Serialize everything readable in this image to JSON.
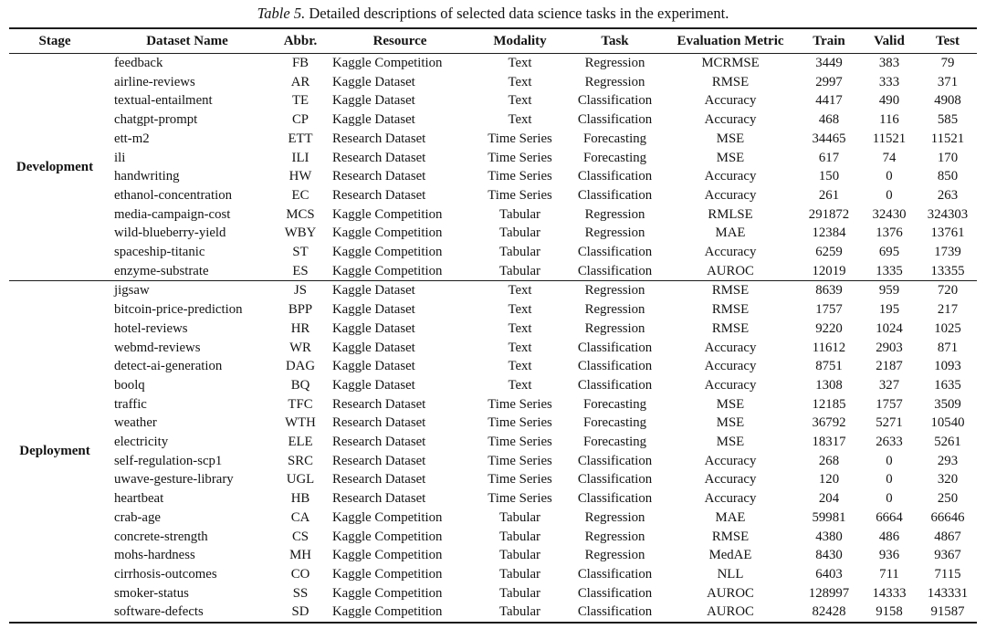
{
  "caption": {
    "label": "Table 5.",
    "text": "Detailed descriptions of selected data science tasks in the experiment."
  },
  "table": {
    "columns": [
      "Stage",
      "Dataset Name",
      "Abbr.",
      "Resource",
      "Modality",
      "Task",
      "Evaluation Metric",
      "Train",
      "Valid",
      "Test"
    ],
    "sections": [
      {
        "stage": "Development",
        "rows": [
          [
            "feedback",
            "FB",
            "Kaggle Competition",
            "Text",
            "Regression",
            "MCRMSE",
            "3449",
            "383",
            "79"
          ],
          [
            "airline-reviews",
            "AR",
            "Kaggle Dataset",
            "Text",
            "Regression",
            "RMSE",
            "2997",
            "333",
            "371"
          ],
          [
            "textual-entailment",
            "TE",
            "Kaggle Dataset",
            "Text",
            "Classification",
            "Accuracy",
            "4417",
            "490",
            "4908"
          ],
          [
            "chatgpt-prompt",
            "CP",
            "Kaggle Dataset",
            "Text",
            "Classification",
            "Accuracy",
            "468",
            "116",
            "585"
          ],
          [
            "ett-m2",
            "ETT",
            "Research Dataset",
            "Time Series",
            "Forecasting",
            "MSE",
            "34465",
            "11521",
            "11521"
          ],
          [
            "ili",
            "ILI",
            "Research Dataset",
            "Time Series",
            "Forecasting",
            "MSE",
            "617",
            "74",
            "170"
          ],
          [
            "handwriting",
            "HW",
            "Research Dataset",
            "Time Series",
            "Classification",
            "Accuracy",
            "150",
            "0",
            "850"
          ],
          [
            "ethanol-concentration",
            "EC",
            "Research Dataset",
            "Time Series",
            "Classification",
            "Accuracy",
            "261",
            "0",
            "263"
          ],
          [
            "media-campaign-cost",
            "MCS",
            "Kaggle Competition",
            "Tabular",
            "Regression",
            "RMLSE",
            "291872",
            "32430",
            "324303"
          ],
          [
            "wild-blueberry-yield",
            "WBY",
            "Kaggle Competition",
            "Tabular",
            "Regression",
            "MAE",
            "12384",
            "1376",
            "13761"
          ],
          [
            "spaceship-titanic",
            "ST",
            "Kaggle Competition",
            "Tabular",
            "Classification",
            "Accuracy",
            "6259",
            "695",
            "1739"
          ],
          [
            "enzyme-substrate",
            "ES",
            "Kaggle Competition",
            "Tabular",
            "Classification",
            "AUROC",
            "12019",
            "1335",
            "13355"
          ]
        ]
      },
      {
        "stage": "Deployment",
        "rows": [
          [
            "jigsaw",
            "JS",
            "Kaggle Dataset",
            "Text",
            "Regression",
            "RMSE",
            "8639",
            "959",
            "720"
          ],
          [
            "bitcoin-price-prediction",
            "BPP",
            "Kaggle Dataset",
            "Text",
            "Regression",
            "RMSE",
            "1757",
            "195",
            "217"
          ],
          [
            "hotel-reviews",
            "HR",
            "Kaggle Dataset",
            "Text",
            "Regression",
            "RMSE",
            "9220",
            "1024",
            "1025"
          ],
          [
            "webmd-reviews",
            "WR",
            "Kaggle Dataset",
            "Text",
            "Classification",
            "Accuracy",
            "11612",
            "2903",
            "871"
          ],
          [
            "detect-ai-generation",
            "DAG",
            "Kaggle Dataset",
            "Text",
            "Classification",
            "Accuracy",
            "8751",
            "2187",
            "1093"
          ],
          [
            "boolq",
            "BQ",
            "Kaggle Dataset",
            "Text",
            "Classification",
            "Accuracy",
            "1308",
            "327",
            "1635"
          ],
          [
            "traffic",
            "TFC",
            "Research Dataset",
            "Time Series",
            "Forecasting",
            "MSE",
            "12185",
            "1757",
            "3509"
          ],
          [
            "weather",
            "WTH",
            "Research Dataset",
            "Time Series",
            "Forecasting",
            "MSE",
            "36792",
            "5271",
            "10540"
          ],
          [
            "electricity",
            "ELE",
            "Research Dataset",
            "Time Series",
            "Forecasting",
            "MSE",
            "18317",
            "2633",
            "5261"
          ],
          [
            "self-regulation-scp1",
            "SRC",
            "Research Dataset",
            "Time Series",
            "Classification",
            "Accuracy",
            "268",
            "0",
            "293"
          ],
          [
            "uwave-gesture-library",
            "UGL",
            "Research Dataset",
            "Time Series",
            "Classification",
            "Accuracy",
            "120",
            "0",
            "320"
          ],
          [
            "heartbeat",
            "HB",
            "Research Dataset",
            "Time Series",
            "Classification",
            "Accuracy",
            "204",
            "0",
            "250"
          ],
          [
            "crab-age",
            "CA",
            "Kaggle Competition",
            "Tabular",
            "Regression",
            "MAE",
            "59981",
            "6664",
            "66646"
          ],
          [
            "concrete-strength",
            "CS",
            "Kaggle Competition",
            "Tabular",
            "Regression",
            "RMSE",
            "4380",
            "486",
            "4867"
          ],
          [
            "mohs-hardness",
            "MH",
            "Kaggle Competition",
            "Tabular",
            "Regression",
            "MedAE",
            "8430",
            "936",
            "9367"
          ],
          [
            "cirrhosis-outcomes",
            "CO",
            "Kaggle Competition",
            "Tabular",
            "Classification",
            "NLL",
            "6403",
            "711",
            "7115"
          ],
          [
            "smoker-status",
            "SS",
            "Kaggle Competition",
            "Tabular",
            "Classification",
            "AUROC",
            "128997",
            "14333",
            "143331"
          ],
          [
            "software-defects",
            "SD",
            "Kaggle Competition",
            "Tabular",
            "Classification",
            "AUROC",
            "82428",
            "9158",
            "91587"
          ]
        ]
      }
    ]
  }
}
